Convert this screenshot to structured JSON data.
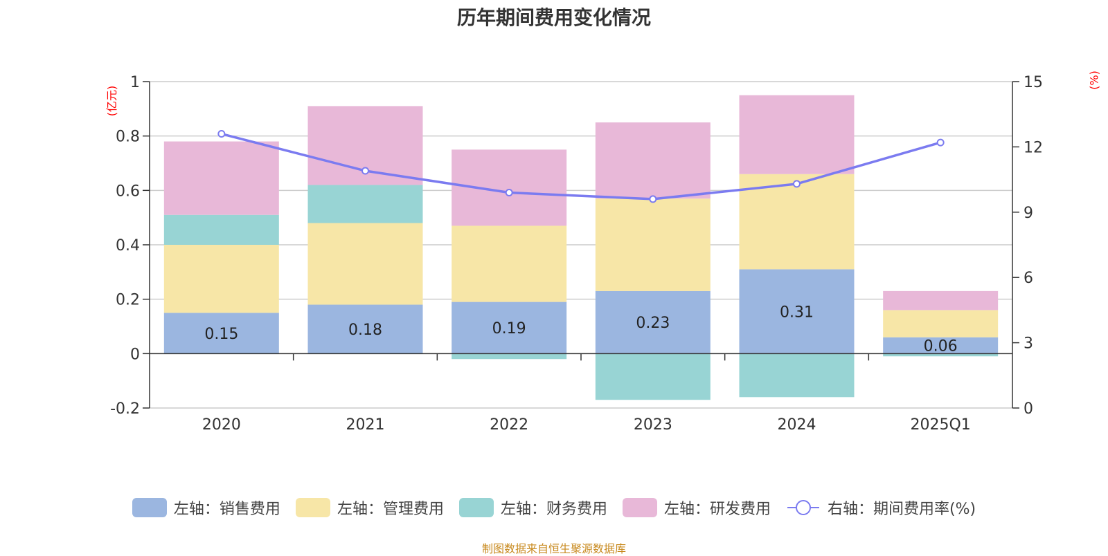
{
  "title": "历年期间费用变化情况",
  "source_note": "制图数据来自恒生聚源数据库",
  "left_unit": "(亿元)",
  "right_unit": "(%)",
  "legend": [
    {
      "label": "左轴：销售费用",
      "color": "#9bb6e0",
      "icon": "swatch"
    },
    {
      "label": "左轴：管理费用",
      "color": "#f7e6a7",
      "icon": "swatch"
    },
    {
      "label": "左轴：财务费用",
      "color": "#98d4d4",
      "icon": "swatch"
    },
    {
      "label": "左轴：研发费用",
      "color": "#e8b8d8",
      "icon": "swatch"
    },
    {
      "label": "右轴：期间费用率(%)",
      "color": "#7b7bf0",
      "icon": "line-circle"
    }
  ],
  "chart_data": {
    "type": "bar",
    "stacked": true,
    "categories": [
      "2020",
      "2021",
      "2022",
      "2023",
      "2024",
      "2025Q1"
    ],
    "series": [
      {
        "name": "左轴：销售费用",
        "axis": "left",
        "color": "#9bb6e0",
        "values": [
          0.15,
          0.18,
          0.19,
          0.23,
          0.31,
          0.06
        ],
        "labels": [
          "0.15",
          "0.18",
          "0.19",
          "0.23",
          "0.31",
          "0.06"
        ]
      },
      {
        "name": "左轴：管理费用",
        "axis": "left",
        "color": "#f7e6a7",
        "values": [
          0.25,
          0.3,
          0.28,
          0.34,
          0.35,
          0.1
        ]
      },
      {
        "name": "左轴：财务费用",
        "axis": "left",
        "color": "#98d4d4",
        "values": [
          0.11,
          0.14,
          -0.02,
          -0.17,
          -0.16,
          -0.01
        ]
      },
      {
        "name": "左轴：研发费用",
        "axis": "left",
        "color": "#e8b8d8",
        "values": [
          0.27,
          0.29,
          0.28,
          0.28,
          0.29,
          0.07
        ]
      },
      {
        "name": "右轴：期间费用率(%)",
        "axis": "right",
        "type": "line",
        "color": "#7b7bf0",
        "values": [
          12.6,
          10.9,
          9.9,
          9.6,
          10.3,
          12.2
        ]
      }
    ],
    "left_axis": {
      "ylim": [
        -0.2,
        1.0
      ],
      "ticks": [
        -0.2,
        0,
        0.2,
        0.4,
        0.6,
        0.8,
        1.0
      ],
      "tick_labels": [
        "-0.2",
        "0",
        "0.2",
        "0.4",
        "0.6",
        "0.8",
        "1"
      ]
    },
    "right_axis": {
      "ylim": [
        0,
        15
      ],
      "ticks": [
        0,
        3,
        6,
        9,
        12,
        15
      ],
      "tick_labels": [
        "0",
        "3",
        "6",
        "9",
        "12",
        "15"
      ]
    },
    "grid": true,
    "legend_position": "bottom"
  }
}
